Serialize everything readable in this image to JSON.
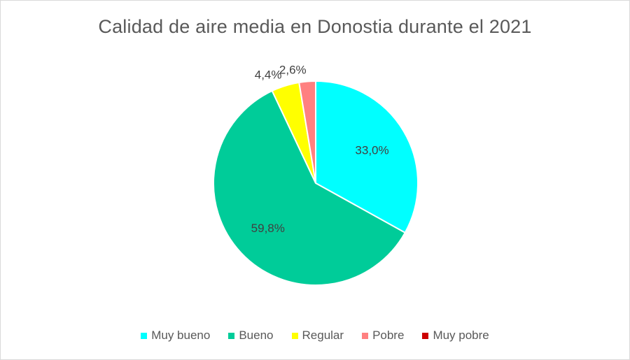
{
  "chart_data": {
    "type": "pie",
    "title": "Calidad de aire media en Donostia durante el 2021",
    "legend_position": "bottom",
    "slices": [
      {
        "name": "Muy bueno",
        "value": 33.0,
        "label": "33,0%",
        "color": "#00ffff"
      },
      {
        "name": "Bueno",
        "value": 59.8,
        "label": "59,8%",
        "color": "#00cc99"
      },
      {
        "name": "Regular",
        "value": 4.4,
        "label": "4,4%",
        "color": "#ffff00"
      },
      {
        "name": "Pobre",
        "value": 2.6,
        "label": "2,6%",
        "color": "#ff8080"
      },
      {
        "name": "Muy pobre",
        "value": 0.0,
        "label": "",
        "color": "#cc0000"
      }
    ]
  }
}
